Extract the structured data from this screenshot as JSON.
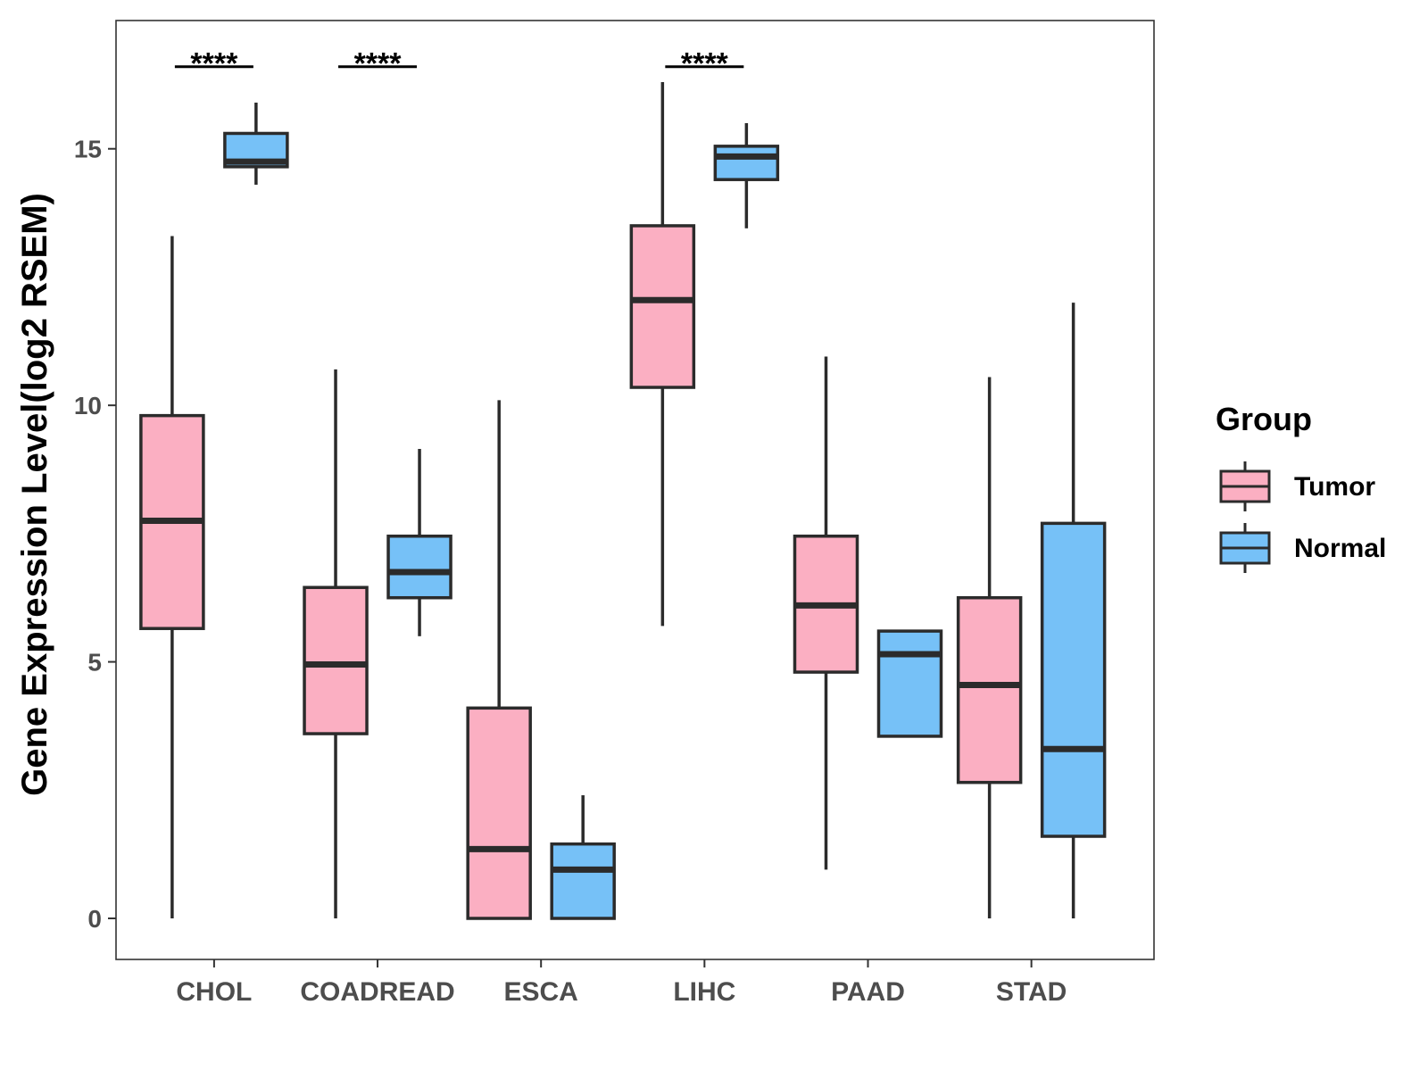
{
  "chart_data": {
    "type": "boxplot",
    "title": "",
    "xlabel": "",
    "ylabel": "Gene Expression Level(log2 RSEM)",
    "ylim": [
      -0.8,
      17.5
    ],
    "yticks": [
      0,
      5,
      10,
      15
    ],
    "grid": false,
    "categories": [
      "CHOL",
      "COADREAD",
      "ESCA",
      "LIHC",
      "PAAD",
      "STAD"
    ],
    "legend": {
      "title": "Group",
      "position": "right",
      "items": [
        {
          "label": "Tumor",
          "color": "#fbafc2"
        },
        {
          "label": "Normal",
          "color": "#76c1f7"
        }
      ]
    },
    "series": [
      {
        "name": "Tumor",
        "color": "#fbafc2",
        "boxes": [
          {
            "category": "CHOL",
            "min": 0,
            "q1": 5.65,
            "median": 7.75,
            "q3": 9.8,
            "max": 13.3
          },
          {
            "category": "COADREAD",
            "min": 0,
            "q1": 3.6,
            "median": 4.95,
            "q3": 6.45,
            "max": 10.7
          },
          {
            "category": "ESCA",
            "min": 0,
            "q1": 0,
            "median": 1.35,
            "q3": 4.1,
            "max": 10.1
          },
          {
            "category": "LIHC",
            "min": 5.7,
            "q1": 10.35,
            "median": 12.05,
            "q3": 13.5,
            "max": 16.3
          },
          {
            "category": "PAAD",
            "min": 0.95,
            "q1": 4.8,
            "median": 6.1,
            "q3": 7.45,
            "max": 10.95
          },
          {
            "category": "STAD",
            "min": 0,
            "q1": 2.65,
            "median": 4.55,
            "q3": 6.25,
            "max": 10.55
          }
        ]
      },
      {
        "name": "Normal",
        "color": "#76c1f7",
        "boxes": [
          {
            "category": "CHOL",
            "min": 14.3,
            "q1": 14.65,
            "median": 14.75,
            "q3": 15.3,
            "max": 15.9
          },
          {
            "category": "COADREAD",
            "min": 5.5,
            "q1": 6.25,
            "median": 6.75,
            "q3": 7.45,
            "max": 9.15
          },
          {
            "category": "ESCA",
            "min": 0,
            "q1": 0,
            "median": 0.95,
            "q3": 1.45,
            "max": 2.4
          },
          {
            "category": "LIHC",
            "min": 13.45,
            "q1": 14.4,
            "median": 14.85,
            "q3": 15.05,
            "max": 15.5
          },
          {
            "category": "PAAD",
            "min": 3.55,
            "q1": 3.55,
            "median": 5.15,
            "q3": 5.6,
            "max": 5.6
          },
          {
            "category": "STAD",
            "min": 0,
            "q1": 1.6,
            "median": 3.3,
            "q3": 7.7,
            "max": 12.0
          }
        ]
      }
    ],
    "significance": [
      {
        "category": "CHOL",
        "label": "****",
        "y": 16.6
      },
      {
        "category": "COADREAD",
        "label": "****",
        "y": 16.6
      },
      {
        "category": "LIHC",
        "label": "****",
        "y": 16.6
      }
    ]
  }
}
